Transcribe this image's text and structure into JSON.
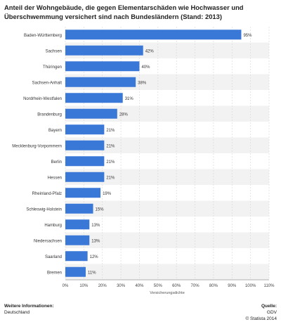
{
  "chart_data": {
    "type": "bar",
    "orientation": "horizontal",
    "title": "Anteil der Wohngebäude, die gegen Elementarschäden wie Hochwasser und Überschwemmung versichert sind nach Bundesländern (Stand: 2013)",
    "categories": [
      "Baden-Württemberg",
      "Sachsen",
      "Thüringen",
      "Sachsen-Anhalt",
      "Nordrhein-Westfalen",
      "Brandenburg",
      "Bayern",
      "Mecklenburg-Vorpommern",
      "Berlin",
      "Hessen",
      "Rheinland-Pfalz",
      "Schleswig-Holstein",
      "Hamburg",
      "Niedersachsen",
      "Saarland",
      "Bremen"
    ],
    "values": [
      95,
      42,
      40,
      38,
      31,
      28,
      21,
      21,
      21,
      21,
      19,
      15,
      13,
      13,
      12,
      11
    ],
    "value_labels": [
      "95%",
      "42%",
      "40%",
      "38%",
      "31%",
      "28%",
      "21%",
      "21%",
      "21%",
      "21%",
      "19%",
      "15%",
      "13%",
      "13%",
      "12%",
      "11%"
    ],
    "xlabel": "Versicherungsdichte",
    "xlim": [
      0,
      110
    ],
    "xticks": [
      "0%",
      "10%",
      "20%",
      "30%",
      "40%",
      "50%",
      "60%",
      "70%",
      "80%",
      "90%",
      "100%",
      "110%"
    ],
    "grid": true,
    "bar_color": "#3a78d8"
  },
  "footer": {
    "info_title": "Weitere Informationen:",
    "info_value": "Deutschland",
    "source_title": "Quelle:",
    "source_value": "GDV",
    "copyright": "© Statista 2014"
  }
}
